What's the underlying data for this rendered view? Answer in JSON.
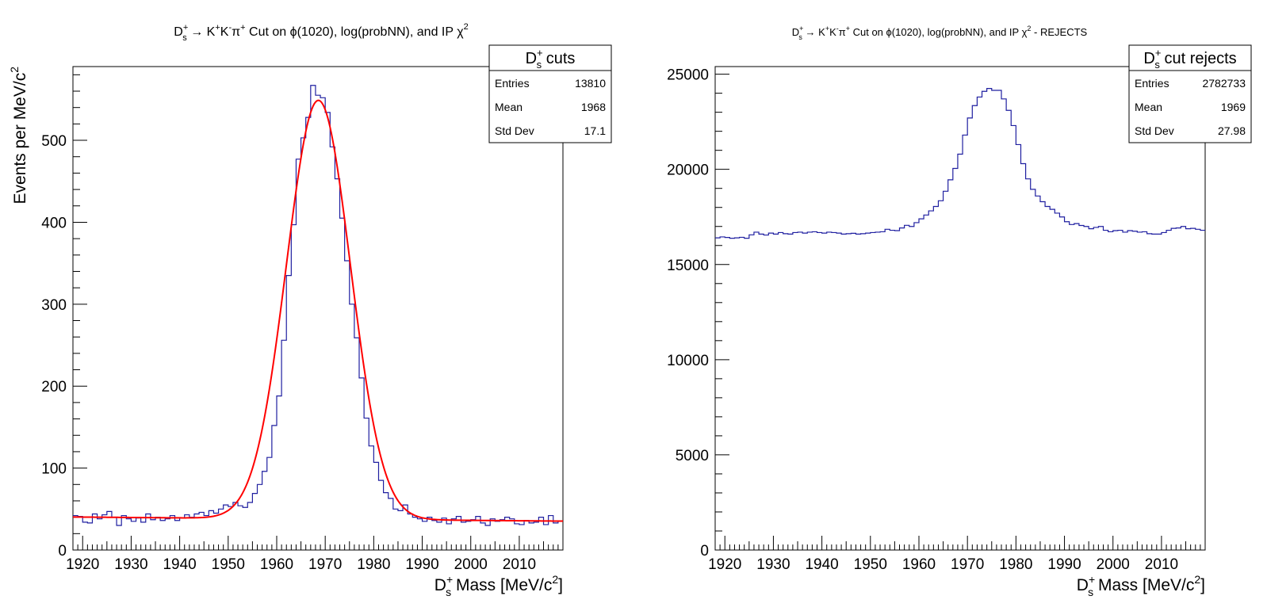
{
  "chart_data": [
    {
      "type": "histogram",
      "title": "D_s^+ → K^+K^-π^+ Cut on φ(1020), log(probNN), and IP χ^2",
      "title_parts": {
        "p1": "D",
        "p1_sup": "+",
        "p1_sub": "s",
        "p2": " → K",
        "p2_sup": "+",
        "p3": "K",
        "p3_sup": "-",
        "p4": "π",
        "p4_sup": "+",
        "p5": " Cut on ϕ(1020), log(probNN), and IP χ",
        "p5_sup": "2"
      },
      "xlabel": "D_s^+ Mass [MeV/c^2]",
      "xlabel_parts": {
        "a": "D",
        "a_sup": "+",
        "a_sub": "s",
        "b": " Mass [MeV/c",
        "b_sup": "2",
        "c": "]"
      },
      "ylabel": "Events per MeV/c^2",
      "ylabel_parts": {
        "a": "Events per MeV/c",
        "a_sup": "2"
      },
      "xlim": [
        1918,
        2019
      ],
      "ylim": [
        0,
        590
      ],
      "xticks": [
        "1920",
        "1930",
        "1940",
        "1950",
        "1960",
        "1970",
        "1980",
        "1990",
        "2000",
        "2010"
      ],
      "yticks": [
        0,
        100,
        200,
        300,
        400,
        500
      ],
      "ytick_labels": [
        "0",
        "100",
        "200",
        "300",
        "400",
        "500"
      ],
      "stats": {
        "name": "D_s^+ cuts",
        "name_parts": {
          "a": "D",
          "a_sup": "+",
          "a_sub": "s",
          "b": " cuts"
        },
        "rows": [
          {
            "label": "Entries",
            "value": "13810"
          },
          {
            "label": "Mean",
            "value": "1968"
          },
          {
            "label": "Std Dev",
            "value": "17.1"
          }
        ]
      },
      "series": [
        {
          "kind": "histogram",
          "color": "#1f1fa0",
          "bin_start": 1918,
          "bin_width": 1,
          "values": [
            42,
            41,
            34,
            33,
            44,
            38,
            43,
            47,
            40,
            30,
            42,
            38,
            35,
            39,
            34,
            44,
            37,
            40,
            36,
            38,
            42,
            36,
            39,
            43,
            40,
            44,
            46,
            42,
            48,
            45,
            50,
            55,
            53,
            58,
            54,
            52,
            58,
            69,
            80,
            96,
            113,
            152,
            188,
            256,
            335,
            397,
            477,
            503,
            528,
            567,
            555,
            552,
            534,
            492,
            453,
            405,
            353,
            300,
            259,
            210,
            161,
            127,
            107,
            85,
            70,
            63,
            50,
            48,
            55,
            44,
            40,
            38,
            35,
            40,
            36,
            34,
            39,
            32,
            38,
            41,
            34,
            35,
            37,
            41,
            33,
            30,
            38,
            35,
            37,
            40,
            38,
            32,
            31,
            36,
            33,
            34,
            40,
            31,
            42,
            33,
            35
          ]
        },
        {
          "kind": "fit",
          "color": "#ff0000",
          "a0": 40.3,
          "a1": -0.05,
          "amp": 511,
          "mean": 1968.6,
          "sigma": 6.6
        }
      ]
    },
    {
      "type": "histogram",
      "title": "D_s^+ → K^+K^-π^+ Cut on φ(1020), log(probNN), and IP χ^2 - REJECTS",
      "title_parts": {
        "p1": "D",
        "p1_sup": "+",
        "p1_sub": "s",
        "p2": " → K",
        "p2_sup": "+",
        "p3": "K",
        "p3_sup": "-",
        "p4": "π",
        "p4_sup": "+",
        "p5": " Cut on ϕ(1020), log(probNN), and IP χ",
        "p5_sup": "2",
        "p6": " - REJECTS"
      },
      "xlabel": "D_s^+ Mass [MeV/c^2]",
      "xlabel_parts": {
        "a": "D",
        "a_sup": "+",
        "a_sub": "s",
        "b": " Mass [MeV/c",
        "b_sup": "2",
        "c": "]"
      },
      "xlim": [
        1918,
        2019
      ],
      "ylim": [
        0,
        25400
      ],
      "xticks": [
        "1920",
        "1930",
        "1940",
        "1950",
        "1960",
        "1970",
        "1980",
        "1990",
        "2000",
        "2010"
      ],
      "yticks": [
        0,
        5000,
        10000,
        15000,
        20000,
        25000
      ],
      "ytick_labels": [
        "0",
        "5000",
        "10000",
        "15000",
        "20000",
        "25000"
      ],
      "stats": {
        "name": "D_s^+ cut rejects",
        "name_parts": {
          "a": "D",
          "a_sup": "+",
          "a_sub": "s",
          "b": " cut rejects"
        },
        "rows": [
          {
            "label": "Entries",
            "value": "2782733"
          },
          {
            "label": "Mean",
            "value": "1969"
          },
          {
            "label": "Std Dev",
            "value": "27.98"
          }
        ]
      },
      "series": [
        {
          "kind": "histogram",
          "color": "#1f1fa0",
          "bin_start": 1918,
          "bin_width": 1,
          "values": [
            16400,
            16450,
            16420,
            16380,
            16400,
            16430,
            16380,
            16560,
            16700,
            16600,
            16550,
            16650,
            16600,
            16680,
            16620,
            16600,
            16680,
            16700,
            16650,
            16700,
            16720,
            16680,
            16650,
            16700,
            16680,
            16650,
            16600,
            16620,
            16640,
            16600,
            16620,
            16650,
            16680,
            16700,
            16720,
            16850,
            16800,
            16780,
            16920,
            17060,
            17000,
            17200,
            17400,
            17600,
            17820,
            18050,
            18350,
            18850,
            19450,
            20050,
            20800,
            21800,
            22700,
            23350,
            23800,
            24100,
            24250,
            24150,
            24150,
            23700,
            23100,
            22300,
            21300,
            20300,
            19500,
            18950,
            18600,
            18300,
            18050,
            17900,
            17700,
            17500,
            17250,
            17100,
            17150,
            17050,
            17000,
            16880,
            16950,
            17000,
            16800,
            16720,
            16780,
            16800,
            16700,
            16780,
            16750,
            16700,
            16720,
            16620,
            16600,
            16600,
            16680,
            16800,
            16900,
            16920,
            17000,
            16880,
            16900,
            16850,
            16800
          ]
        }
      ]
    }
  ]
}
